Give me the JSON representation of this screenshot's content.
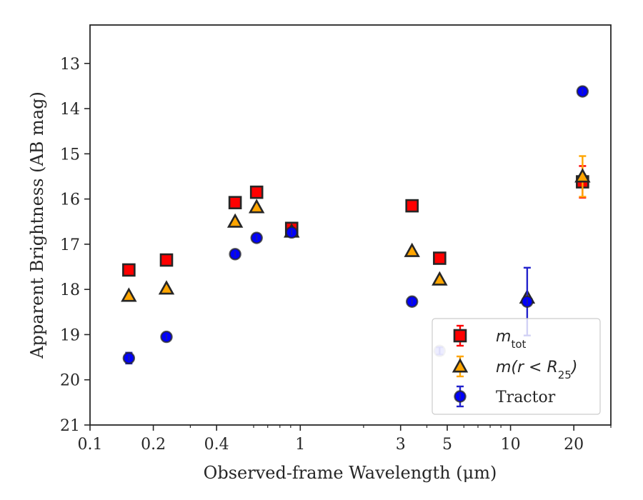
{
  "chart_data": {
    "type": "scatter",
    "title": "",
    "xlabel": "Observed-frame Wavelength (μm)",
    "ylabel": "Apparent Brightness (AB mag)",
    "xscale": "log",
    "xlim": [
      0.1,
      30
    ],
    "ylim": [
      21,
      12.15
    ],
    "y_inverted": true,
    "grid": false,
    "legend_position": "lower-right",
    "x_ticks": [
      0.1,
      0.2,
      0.4,
      1,
      3,
      5,
      10,
      20
    ],
    "x_tick_labels": [
      "0.1",
      "0.2",
      "0.4",
      "1",
      "3",
      "5",
      "10",
      "20"
    ],
    "y_ticks": [
      13,
      14,
      15,
      16,
      17,
      18,
      19,
      20,
      21
    ],
    "y_tick_labels": [
      "13",
      "14",
      "15",
      "16",
      "17",
      "18",
      "19",
      "20",
      "21"
    ],
    "series": [
      {
        "name": "m_tot",
        "legend_main": "m",
        "legend_sub": "tot",
        "marker": "square",
        "color": "#ff0000",
        "edge": "#262626",
        "x": [
          0.153,
          0.231,
          0.49,
          0.62,
          0.91,
          3.4,
          4.6,
          22.0
        ],
        "y": [
          17.57,
          17.35,
          16.08,
          15.85,
          16.65,
          16.15,
          17.31,
          15.62
        ],
        "yerr": [
          0,
          0,
          0,
          0,
          0,
          0,
          0,
          0.35
        ]
      },
      {
        "name": "m(r < R_25)",
        "legend_main": "m(r < R",
        "legend_sub": "25",
        "legend_tail": ")",
        "marker": "triangle",
        "color": "#ffa500",
        "edge": "#262626",
        "x": [
          0.153,
          0.231,
          0.49,
          0.62,
          0.91,
          3.4,
          4.6,
          12.0,
          22.0
        ],
        "y": [
          18.14,
          17.98,
          16.5,
          16.18,
          16.72,
          17.15,
          17.78,
          18.18,
          15.5
        ],
        "yerr": [
          0,
          0,
          0,
          0,
          0,
          0,
          0,
          0,
          0.45
        ]
      },
      {
        "name": "Tractor",
        "marker": "circle",
        "color": "#0000ff",
        "edge": "#262626",
        "x": [
          0.153,
          0.231,
          0.49,
          0.62,
          0.91,
          3.4,
          4.6,
          12.0,
          22.0
        ],
        "y": [
          19.52,
          19.05,
          17.22,
          16.86,
          16.74,
          18.27,
          19.36,
          18.27,
          13.62
        ],
        "yerr": [
          0.12,
          0.06,
          0.05,
          0.05,
          0.05,
          0.05,
          0.08,
          0.75,
          0.05
        ],
        "faded": [
          false,
          false,
          false,
          false,
          false,
          false,
          true,
          false,
          false
        ]
      }
    ]
  }
}
